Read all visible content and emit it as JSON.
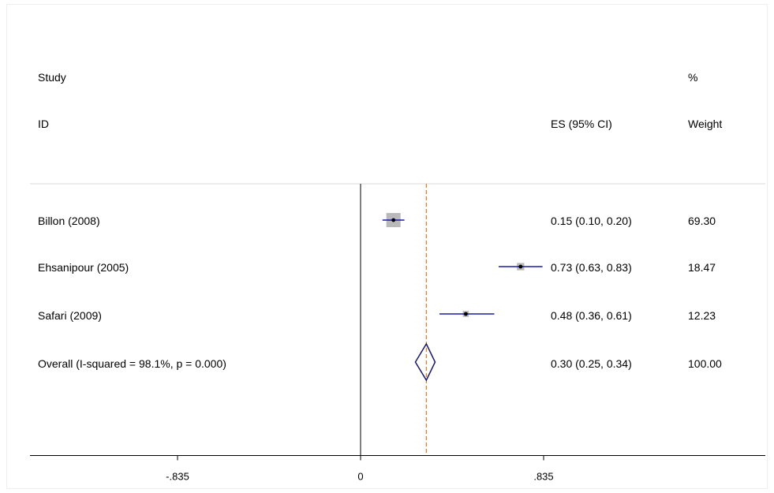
{
  "chart_data": {
    "type": "forest",
    "header": {
      "study_col": [
        "Study",
        "ID"
      ],
      "es_col": "ES (95% CI)",
      "weight_col": [
        "%",
        "Weight"
      ]
    },
    "null_line": 0,
    "overall_es": 0.3,
    "x_ticks": [
      {
        "value": -0.835,
        "label": "-.835"
      },
      {
        "value": 0,
        "label": "0"
      },
      {
        "value": 0.835,
        "label": ".835"
      }
    ],
    "xlim": [
      -1.5,
      1.85
    ],
    "studies": [
      {
        "label": "Billon (2008)",
        "es": 0.15,
        "lo": 0.1,
        "hi": 0.2,
        "ci_text": "0.15 (0.10, 0.20)",
        "weight": 69.3,
        "weight_text": "69.30"
      },
      {
        "label": "Ehsanipour (2005)",
        "es": 0.73,
        "lo": 0.63,
        "hi": 0.83,
        "ci_text": "0.73 (0.63, 0.83)",
        "weight": 18.47,
        "weight_text": "18.47"
      },
      {
        "label": "Safari (2009)",
        "es": 0.48,
        "lo": 0.36,
        "hi": 0.61,
        "ci_text": "0.48 (0.36, 0.61)",
        "weight": 12.23,
        "weight_text": "12.23"
      }
    ],
    "overall": {
      "label": "Overall  (I-squared = 98.1%, p = 0.000)",
      "es": 0.3,
      "lo": 0.25,
      "hi": 0.34,
      "ci_text": "0.30 (0.25, 0.34)",
      "weight_text": "100.00"
    },
    "colors": {
      "ci_line": "#1a1aa6",
      "point": "#000000",
      "weight_box": "#b9b9b9",
      "diamond": "#1a1a66",
      "overall_line": "#e07a1a",
      "axis": "#000000"
    }
  }
}
